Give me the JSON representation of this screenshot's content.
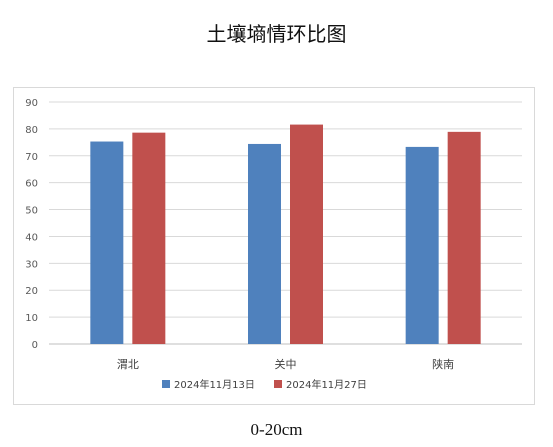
{
  "chart_data": {
    "type": "bar",
    "title": "土壤墒情环比图",
    "caption": "0-20cm",
    "categories": [
      "渭北",
      "关中",
      "陕南"
    ],
    "series": [
      {
        "name": "2024年11月13日",
        "color": "#4f81bd",
        "values": [
          75.3,
          74.4,
          73.3
        ]
      },
      {
        "name": "2024年11月27日",
        "color": "#c0504d",
        "values": [
          78.6,
          81.6,
          78.9
        ]
      }
    ],
    "y_ticks": [
      "0",
      "10",
      "20",
      "30",
      "40",
      "50",
      "60",
      "70",
      "80",
      "90"
    ],
    "ylim": [
      0,
      90
    ],
    "grid": true,
    "legend_position": "bottom"
  }
}
